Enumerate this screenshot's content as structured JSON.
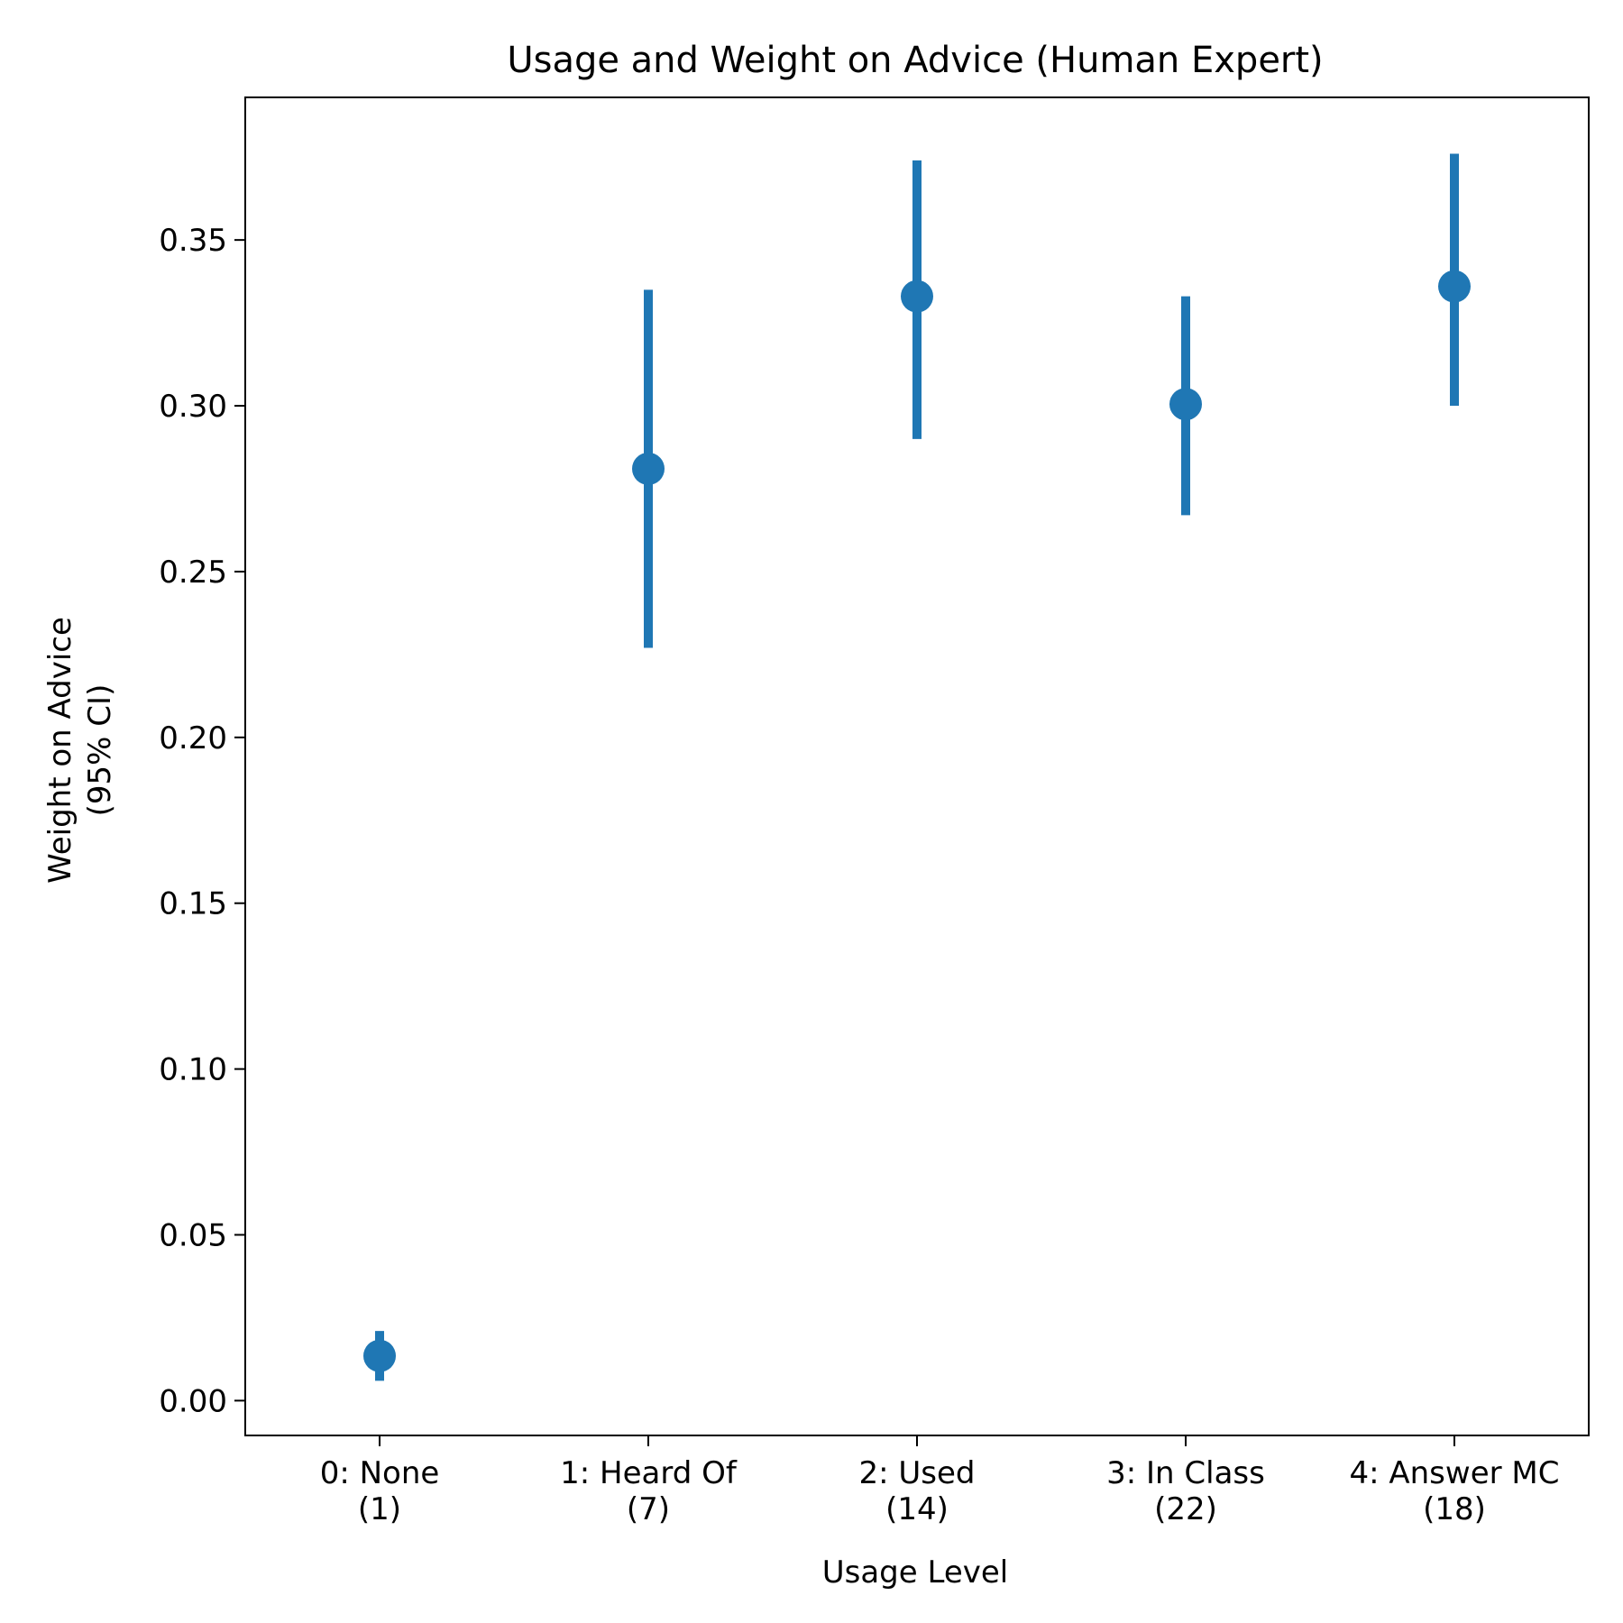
{
  "chart_data": {
    "type": "scatter",
    "title": "Usage and Weight on Advice (Human Expert)",
    "xlabel": "Usage Level",
    "ylabel": [
      "Weight on Advice",
      "(95% CI)"
    ],
    "categories": [
      [
        "0: None",
        "(1)"
      ],
      [
        "1: Heard Of",
        "(7)"
      ],
      [
        "2: Used",
        "(14)"
      ],
      [
        "3: In Class",
        "(22)"
      ],
      [
        "4: Answer MC",
        "(18)"
      ]
    ],
    "series": [
      {
        "values": [
          0.0135,
          0.281,
          0.333,
          0.3005,
          0.336
        ],
        "ci_low": [
          0.006,
          0.227,
          0.29,
          0.267,
          0.3
        ],
        "ci_high": [
          0.021,
          0.335,
          0.374,
          0.333,
          0.376
        ],
        "color": "#1f77b4"
      }
    ],
    "yticks": [
      0.0,
      0.05,
      0.1,
      0.15,
      0.2,
      0.25,
      0.3,
      0.35
    ],
    "ytick_labels": [
      "0.00",
      "0.05",
      "0.10",
      "0.15",
      "0.20",
      "0.25",
      "0.30",
      "0.35"
    ],
    "ylim": [
      -0.0105,
      0.393
    ],
    "grid": false
  }
}
